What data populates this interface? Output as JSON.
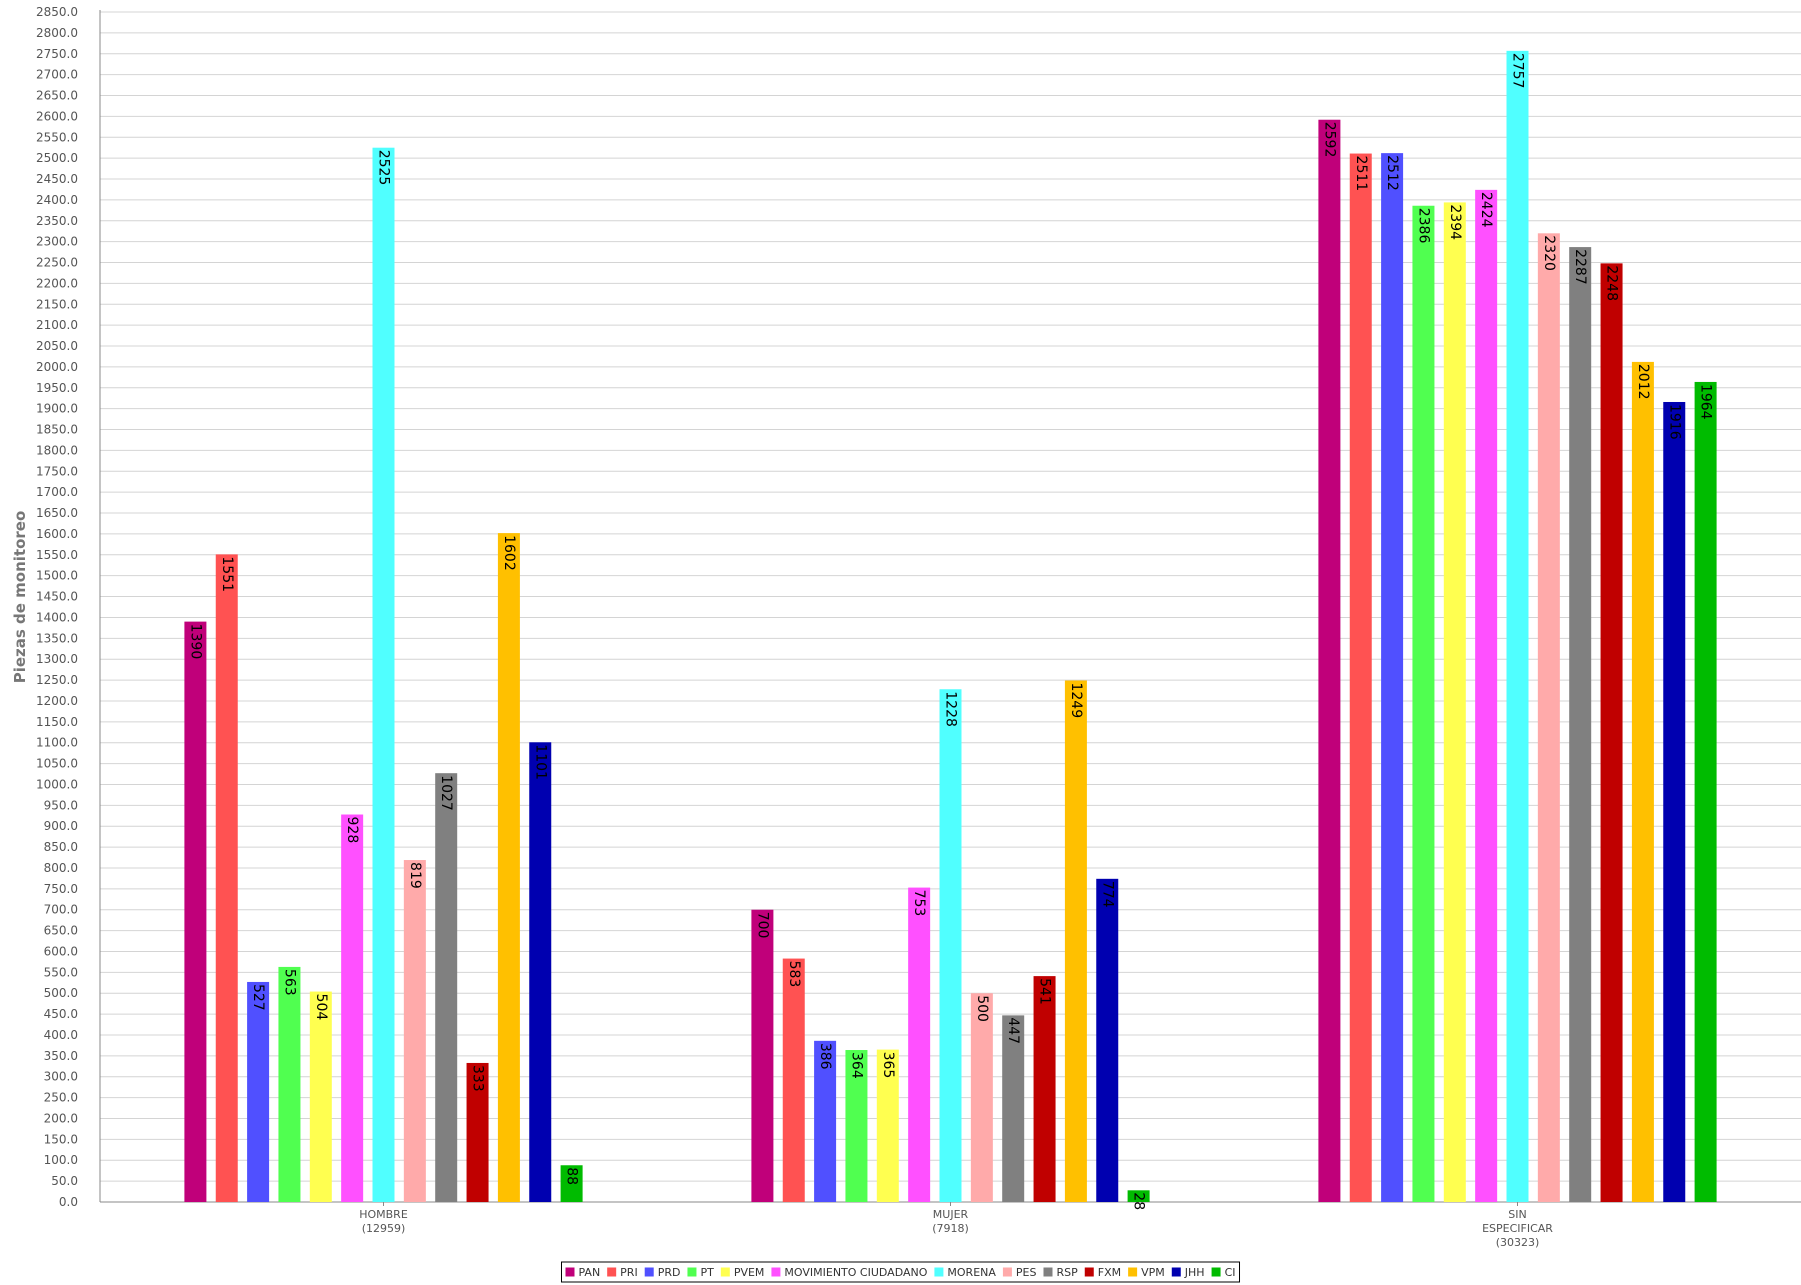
{
  "chart_data": {
    "type": "bar",
    "ylabel": "Piezas de monitoreo",
    "ylim": [
      0,
      2850
    ],
    "ytick_step": 50,
    "grid": true,
    "legend_position": "bottom",
    "categories": [
      [
        "HOMBRE",
        "(12959)"
      ],
      [
        "MUJER",
        "(7918)"
      ],
      [
        "SIN",
        "ESPECIFICAR",
        "(30323)"
      ]
    ],
    "series": [
      {
        "name": "PAN",
        "color": "#C0007A",
        "values": [
          1390,
          700,
          2592
        ]
      },
      {
        "name": "PRI",
        "color": "#FF5252",
        "values": [
          1551,
          583,
          2511
        ]
      },
      {
        "name": "PRD",
        "color": "#5050FF",
        "values": [
          527,
          386,
          2512
        ]
      },
      {
        "name": "PT",
        "color": "#50FF50",
        "values": [
          563,
          364,
          2386
        ]
      },
      {
        "name": "PVEM",
        "color": "#FFFF50",
        "values": [
          504,
          365,
          2394
        ]
      },
      {
        "name": "MOVIMIENTO CIUDADANO",
        "color": "#FF50FF",
        "values": [
          928,
          753,
          2424
        ]
      },
      {
        "name": "MORENA",
        "color": "#50FFFF",
        "values": [
          2525,
          1228,
          2757
        ]
      },
      {
        "name": "PES",
        "color": "#FFAAAA",
        "values": [
          819,
          500,
          2320
        ]
      },
      {
        "name": "RSP",
        "color": "#808080",
        "values": [
          1027,
          447,
          2287
        ]
      },
      {
        "name": "FXM",
        "color": "#C00000",
        "values": [
          333,
          541,
          2248
        ]
      },
      {
        "name": "VPM",
        "color": "#FFC000",
        "values": [
          1602,
          1249,
          2012
        ]
      },
      {
        "name": "JHH",
        "color": "#0000B0",
        "values": [
          1101,
          774,
          1916
        ]
      },
      {
        "name": "CI",
        "color": "#00BB00",
        "values": [
          88,
          28,
          1964
        ]
      }
    ]
  }
}
